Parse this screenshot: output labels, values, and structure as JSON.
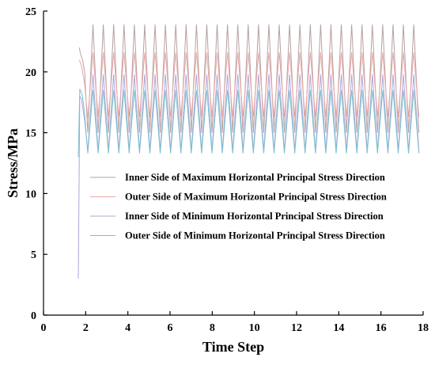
{
  "chart_data": {
    "type": "line",
    "title": "",
    "xlabel": "Time Step",
    "ylabel": "Stress/MPa",
    "xlim": [
      0,
      18
    ],
    "ylim": [
      0,
      25
    ],
    "xticks": [
      "0",
      "2",
      "4",
      "6",
      "8",
      "10",
      "12",
      "14",
      "16",
      "18"
    ],
    "yticks": [
      "0",
      "5",
      "10",
      "15",
      "20",
      "25"
    ],
    "grid": false,
    "legend_position": "center-right",
    "oscillation": {
      "start_time": 2.1,
      "end_time": 17.8,
      "cycles": 32
    },
    "series": [
      {
        "name": "Inner Side of Maximum Horizontal Principal Stress Direction",
        "color": "#b8a0a0",
        "initial_path": [
          [
            1.7,
            22.0
          ],
          [
            1.75,
            21.5
          ],
          [
            1.85,
            21.0
          ],
          [
            1.95,
            20.0
          ],
          [
            2.1,
            15.0
          ]
        ],
        "peak": 23.9,
        "trough": 15.0
      },
      {
        "name": "Outer Side of Maximum Horizontal Principal Stress Direction",
        "color": "#e8a8a8",
        "initial_path": [
          [
            1.7,
            21.0
          ],
          [
            1.8,
            20.5
          ],
          [
            1.95,
            19.0
          ],
          [
            2.1,
            16.2
          ]
        ],
        "peak": 21.6,
        "trough": 16.3
      },
      {
        "name": "Inner Side of Minimum Horizontal Principal Stress Direction",
        "color": "#a8a8d8",
        "initial_path": [
          [
            1.65,
            3.0
          ],
          [
            1.72,
            18.0
          ],
          [
            1.8,
            17.8
          ],
          [
            1.95,
            16.0
          ],
          [
            2.1,
            13.5
          ]
        ],
        "peak": 19.8,
        "trough": 13.5
      },
      {
        "name": "Outer Side of Minimum Horizontal Principal Stress Direction",
        "color": "#7fbfcf",
        "initial_path": [
          [
            1.65,
            13.0
          ],
          [
            1.72,
            18.6
          ],
          [
            1.85,
            18.0
          ],
          [
            1.95,
            16.5
          ],
          [
            2.1,
            13.3
          ]
        ],
        "peak": 18.5,
        "trough": 13.3
      }
    ]
  }
}
